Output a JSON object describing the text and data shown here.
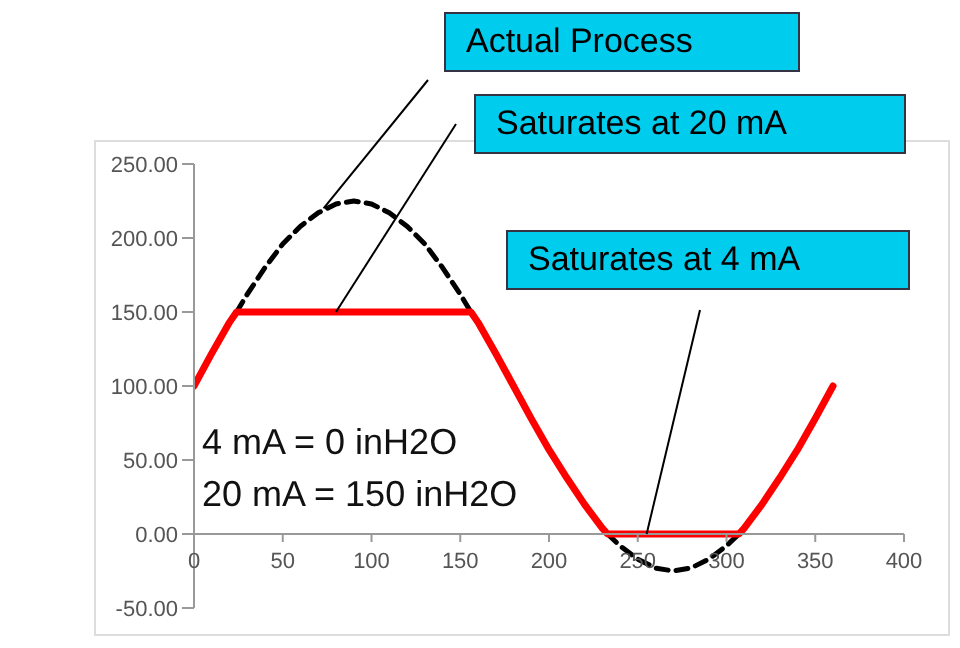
{
  "chart_data": {
    "type": "line",
    "xlim": [
      0,
      400
    ],
    "xticks": [
      0,
      50,
      100,
      150,
      200,
      250,
      300,
      350,
      400
    ],
    "ylim": [
      -50,
      250
    ],
    "yticks": [
      {
        "value": -50,
        "label": "-50.00"
      },
      {
        "value": 0,
        "label": "0.00"
      },
      {
        "value": 50,
        "label": "50.00"
      },
      {
        "value": 100,
        "label": "100.00"
      },
      {
        "value": 150,
        "label": "150.00"
      },
      {
        "value": 200,
        "label": "200.00"
      },
      {
        "value": 250,
        "label": "250.00"
      }
    ],
    "marker": "none",
    "series": [
      {
        "color": "#000000",
        "line_style": "dashed",
        "x": [
          24,
          30,
          40,
          50,
          60,
          70,
          80,
          90,
          100,
          110,
          120,
          130,
          140,
          150,
          156,
          195,
          233,
          240,
          250,
          260,
          270,
          280,
          290,
          300,
          307
        ],
        "values": [
          150,
          162,
          180,
          196,
          208,
          217,
          223,
          225,
          223,
          217,
          208,
          196,
          180,
          162,
          150,
          null,
          0,
          -8,
          -17,
          -23,
          -25,
          -23,
          -17,
          -8,
          0
        ]
      },
      {
        "color": "#ff0000",
        "line_style": "solid",
        "x": [
          0,
          10,
          20,
          24,
          30,
          60,
          90,
          120,
          150,
          156,
          160,
          170,
          180,
          190,
          200,
          210,
          220,
          230,
          233,
          250,
          270,
          290,
          307,
          310,
          320,
          330,
          340,
          350,
          360
        ],
        "values": [
          100,
          122,
          143,
          150,
          150,
          150,
          150,
          150,
          150,
          150,
          143,
          122,
          100,
          78,
          57,
          38,
          20,
          4,
          0,
          0,
          0,
          0,
          0,
          4,
          20,
          38,
          57,
          78,
          100
        ]
      }
    ],
    "annotations": [
      {
        "text": "Actual Process",
        "x": 73,
        "y": 220
      },
      {
        "text": "Saturates at 20 mA",
        "x": 80,
        "y": 150
      },
      {
        "text": "Saturates at 4 mA",
        "x": 255,
        "y": 0
      },
      "4 mA = 0 inH2O",
      "20 mA = 150 inH2O"
    ]
  }
}
